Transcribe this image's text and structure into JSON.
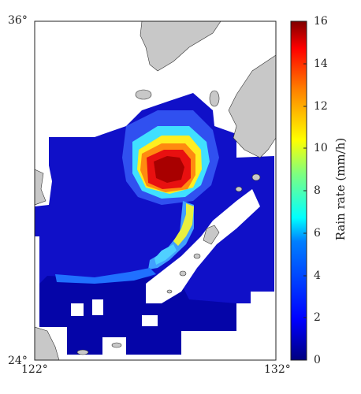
{
  "map": {
    "lat_top_label": "36°",
    "lat_bottom_label": "24°",
    "lon_left_label": "122°",
    "lon_right_label": "132°",
    "lat_range": [
      24,
      36
    ],
    "lon_range": [
      122,
      132
    ]
  },
  "colorbar": {
    "title": "Rain rate (mm/h)",
    "ticks": [
      "16",
      "14",
      "12",
      "10",
      "8",
      "6",
      "4",
      "2",
      "0"
    ],
    "range": [
      0,
      16
    ],
    "colormap": [
      "#00007f",
      "#0000ff",
      "#007fff",
      "#00ffff",
      "#7fff7f",
      "#ffff00",
      "#ff7f00",
      "#ff0000",
      "#7f0000"
    ]
  },
  "colors": {
    "land": "#c8c8c8",
    "background": "#ffffff",
    "frame": "#222222"
  }
}
